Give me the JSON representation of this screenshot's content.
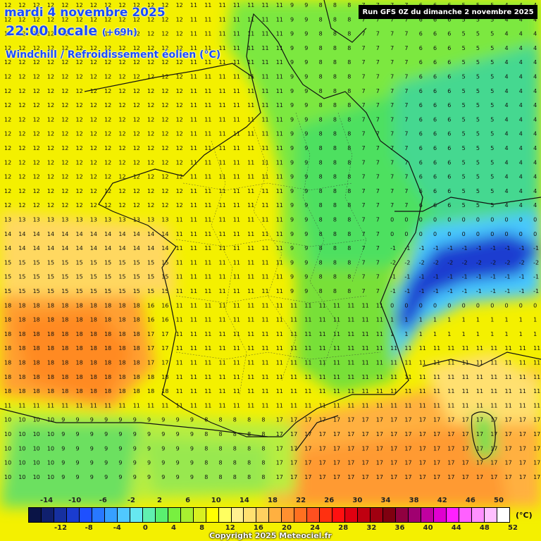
{
  "header": {
    "date_line": "mardi 4 novembre 2025",
    "time_line": "22:00 locale",
    "lead_time": "(+69h)",
    "parameter": "Windchill / Refroidissement éolien (°C)",
    "run_info": "Run GFS 0Z du dimanche 2 novembre 2025"
  },
  "legend": {
    "top_labels": [
      "-14",
      "-10",
      "-6",
      "-2",
      "2",
      "6",
      "10",
      "14",
      "18",
      "22",
      "26",
      "30",
      "34",
      "38",
      "42",
      "46",
      "50"
    ],
    "bottom_labels": [
      "-12",
      "-8",
      "-4",
      "0",
      "4",
      "8",
      "12",
      "16",
      "20",
      "24",
      "28",
      "32",
      "36",
      "40",
      "44",
      "48",
      "52"
    ],
    "unit": "(°C)",
    "colors": [
      "#0a1446",
      "#10206e",
      "#1630a0",
      "#1a3cd0",
      "#1e50ff",
      "#2878ff",
      "#36a0ff",
      "#50c8ff",
      "#66e8f0",
      "#60f0b0",
      "#5af070",
      "#78f040",
      "#a8f030",
      "#d8f020",
      "#ffff00",
      "#ffff60",
      "#fff090",
      "#ffe070",
      "#ffd060",
      "#ffb040",
      "#ff9030",
      "#ff7020",
      "#ff5020",
      "#ff3010",
      "#ff1010",
      "#e00010",
      "#c00010",
      "#a00010",
      "#800010",
      "#900040",
      "#a00070",
      "#c000a0",
      "#e000d0",
      "#ff20ff",
      "#ff60ff",
      "#ff90ff",
      "#ffc0ff",
      "#ffffff"
    ]
  },
  "map": {
    "sample_values": {
      "atlantic_north": 12,
      "bay_of_biscay": 18,
      "paris_area": 11,
      "eastern_france": 6,
      "alps_min": -2,
      "mediterranean": 17,
      "pyrenees": 8
    }
  },
  "footer": {
    "copyright": "Copyright 2025 Meteociel.fr"
  }
}
